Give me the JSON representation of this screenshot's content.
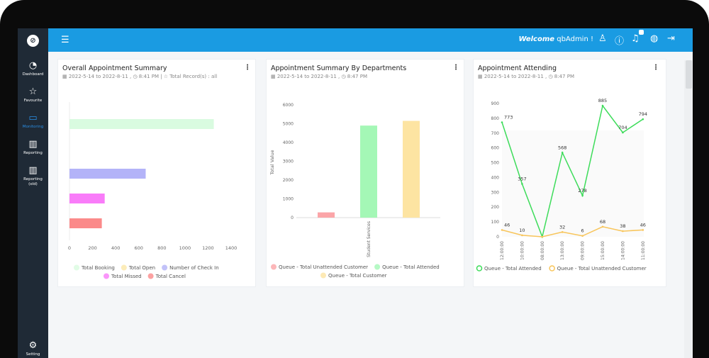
{
  "header": {
    "welcome_prefix": "Welcome",
    "user": "qbAdmin !"
  },
  "sidebar": {
    "items": [
      {
        "label": "Dashboard",
        "icon": "pie-chart-icon"
      },
      {
        "label": "Favourite",
        "icon": "star-icon"
      },
      {
        "label": "Monitoring",
        "icon": "monitor-icon",
        "active": true
      },
      {
        "label": "Reporting",
        "icon": "report-icon"
      },
      {
        "label": "Reporting (old)",
        "icon": "report-icon"
      }
    ],
    "setting": "Setting"
  },
  "colors": {
    "topbar": "#1a9be2",
    "sidebar": "#1f2a36",
    "active": "#2a8fe6"
  },
  "cards": [
    {
      "title": "Overall Appointment Summary",
      "subtitle": "▦ 2022-5-14 to 2022-8-11 , ◷ 8:41 PM | ☆ Total Record(s) : all"
    },
    {
      "title": "Appointment Summary By Departments",
      "subtitle": "▦ 2022-5-14 to 2022-8-11 , ◷ 8:47 PM"
    },
    {
      "title": "Appointment  Attending",
      "subtitle": "▦ 2022-5-14 to 2022-8-11 , ◷ 8:47 PM"
    }
  ],
  "chart_data": [
    {
      "type": "bar",
      "orientation": "horizontal",
      "categories": [
        "Total Booking",
        "Total Open",
        "Number of Check In",
        "Total Missed",
        "Total Cancel"
      ],
      "values": [
        1250,
        0,
        660,
        305,
        280
      ],
      "colors": [
        "#d9fbe0",
        "#fbe7a8",
        "#b3b3f8",
        "#f97cf9",
        "#fb8a8a"
      ],
      "xlim": [
        0,
        1400
      ],
      "xticks": [
        0,
        200,
        400,
        600,
        800,
        1000,
        1200,
        1400
      ],
      "legend": "bottom"
    },
    {
      "type": "bar",
      "categories": [
        "Student Services"
      ],
      "series": [
        {
          "name": "Queue - Total Unattended Customer",
          "values": [
            280
          ],
          "color": "#fba5a8"
        },
        {
          "name": "Queue - Total Attended",
          "values": [
            4900
          ],
          "color": "#a4f7b6"
        },
        {
          "name": "Queue - Total Customer",
          "values": [
            5150
          ],
          "color": "#fde4a2"
        }
      ],
      "ylabel": "Total Value",
      "ylim": [
        0,
        6000
      ],
      "yticks": [
        0,
        1000,
        2000,
        3000,
        4000,
        5000,
        6000
      ],
      "legend": "bottom"
    },
    {
      "type": "line",
      "x": [
        "12:00:00",
        "10:00:00",
        "08:00:00",
        "13:00:00",
        "09:00:00",
        "15:00:00",
        "14:00:00",
        "11:00:00"
      ],
      "series": [
        {
          "name": "Queue - Total Attended",
          "values": [
            773,
            357,
            0,
            568,
            278,
            885,
            704,
            794
          ],
          "color": "#3ddc5a"
        },
        {
          "name": "Queue - Total Unattended Customer",
          "values": [
            46,
            10,
            0,
            32,
            6,
            68,
            38,
            46
          ],
          "color": "#f8c55a"
        }
      ],
      "ylim": [
        0,
        900
      ],
      "yticks": [
        0,
        100,
        200,
        300,
        400,
        500,
        600,
        700,
        800,
        900
      ],
      "legend": "bottom"
    }
  ]
}
